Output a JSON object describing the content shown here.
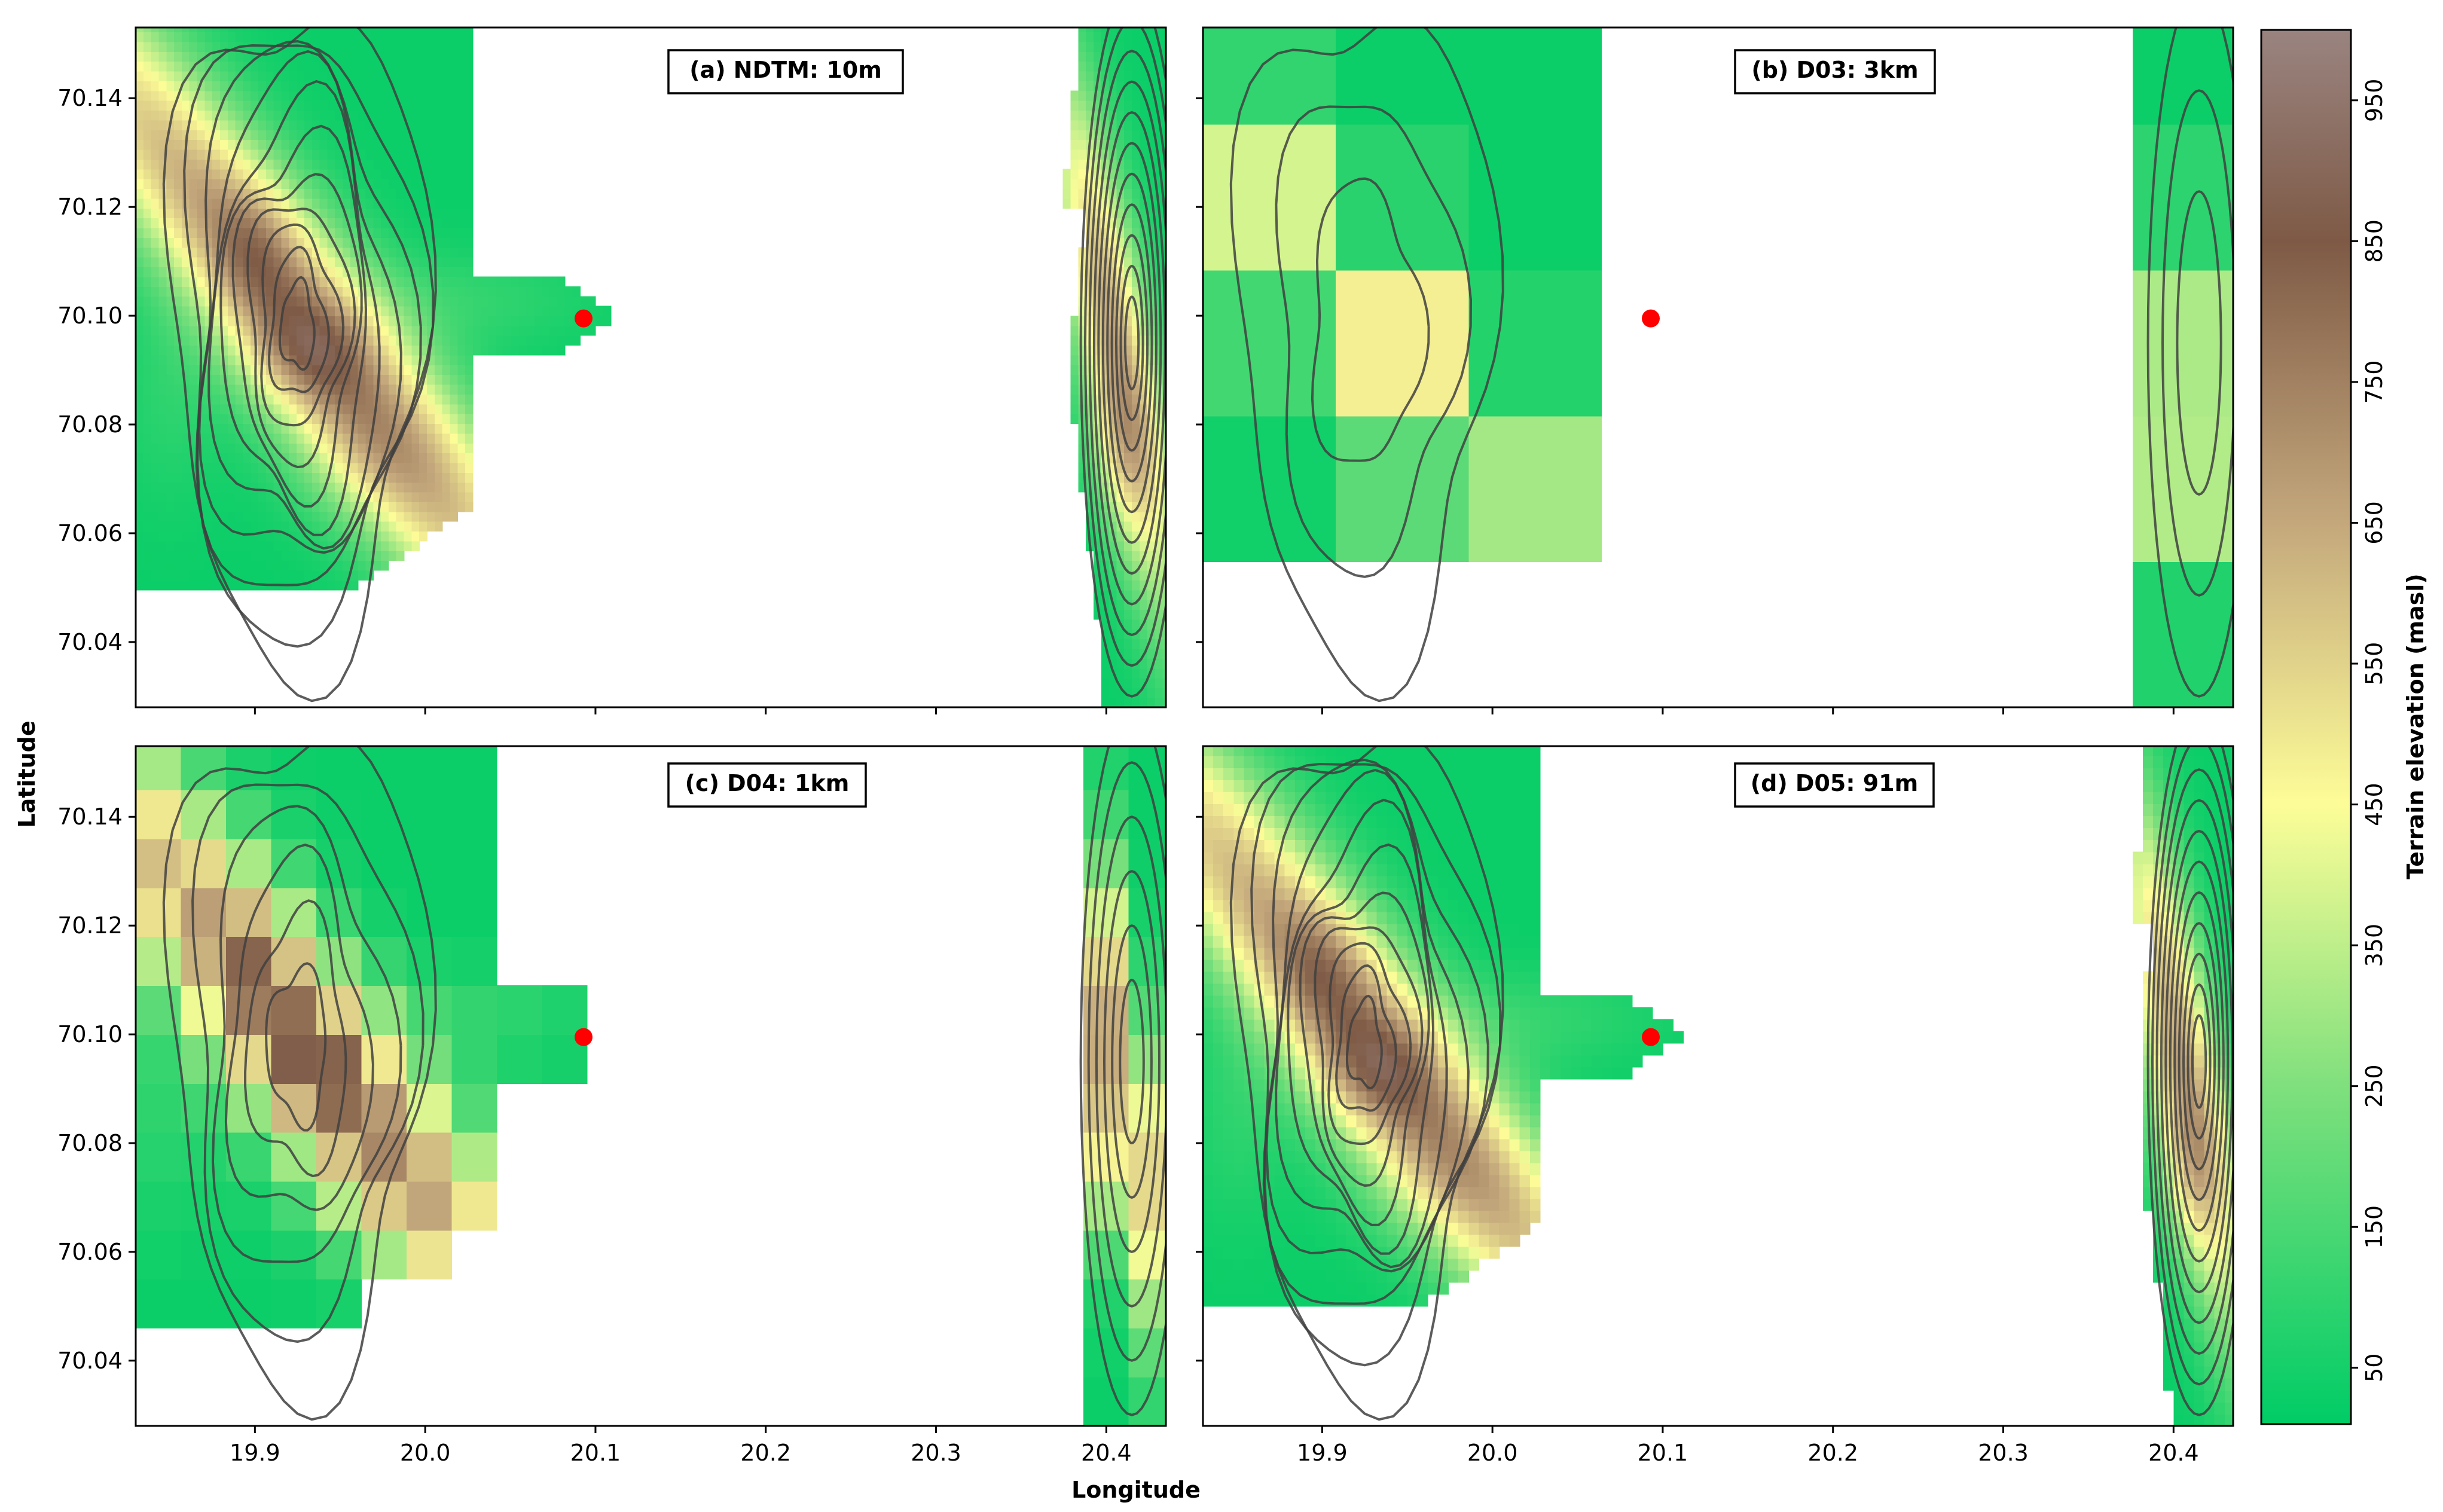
{
  "figure": {
    "xlabel": "Longitude",
    "ylabel": "Latitude",
    "colorbar_label": "Terrain elevation (masl)"
  },
  "chart_data": {
    "type": "heatmap",
    "xlim": [
      19.83,
      20.435
    ],
    "ylim": [
      70.028,
      70.153
    ],
    "x_ticks": [
      19.9,
      20.0,
      20.1,
      20.2,
      20.3,
      20.4
    ],
    "x_tick_labels": [
      "19.9",
      "20.0",
      "20.1",
      "20.2",
      "20.3",
      "20.4"
    ],
    "y_ticks": [
      70.04,
      70.06,
      70.08,
      70.1,
      70.12,
      70.14
    ],
    "y_tick_labels": [
      "70.04",
      "70.06",
      "70.08",
      "70.10",
      "70.12",
      "70.14"
    ],
    "marker": {
      "lon": 20.093,
      "lat": 70.0995,
      "color": "#ff0000"
    },
    "colorbar": {
      "range": [
        10,
        1000
      ],
      "ticks": [
        50,
        150,
        250,
        350,
        450,
        550,
        650,
        750,
        850,
        950
      ],
      "tick_labels": [
        "50",
        "150",
        "250",
        "350",
        "450",
        "550",
        "650",
        "750",
        "850",
        "950"
      ],
      "stops": [
        {
          "value": 10,
          "color": "#00cc66"
        },
        {
          "value": 250,
          "color": "#7fe07d"
        },
        {
          "value": 450,
          "color": "#fdfd98"
        },
        {
          "value": 650,
          "color": "#c4a87c"
        },
        {
          "value": 850,
          "color": "#7e5a46"
        },
        {
          "value": 1000,
          "color": "#9a8480"
        }
      ]
    },
    "panels": [
      {
        "id": "a",
        "title": "(a) NDTM: 10m",
        "resolution": "10m",
        "shows_x_tick_labels": false,
        "shows_y_tick_labels": true
      },
      {
        "id": "b",
        "title": "(b) D03: 3km",
        "resolution": "3km",
        "shows_x_tick_labels": false,
        "shows_y_tick_labels": false
      },
      {
        "id": "c",
        "title": "(c) D04: 1km",
        "resolution": "1km",
        "shows_x_tick_labels": true,
        "shows_y_tick_labels": true
      },
      {
        "id": "d",
        "title": "(d) D05: 91m",
        "resolution": "91m",
        "shows_x_tick_labels": true,
        "shows_y_tick_labels": false
      }
    ]
  }
}
